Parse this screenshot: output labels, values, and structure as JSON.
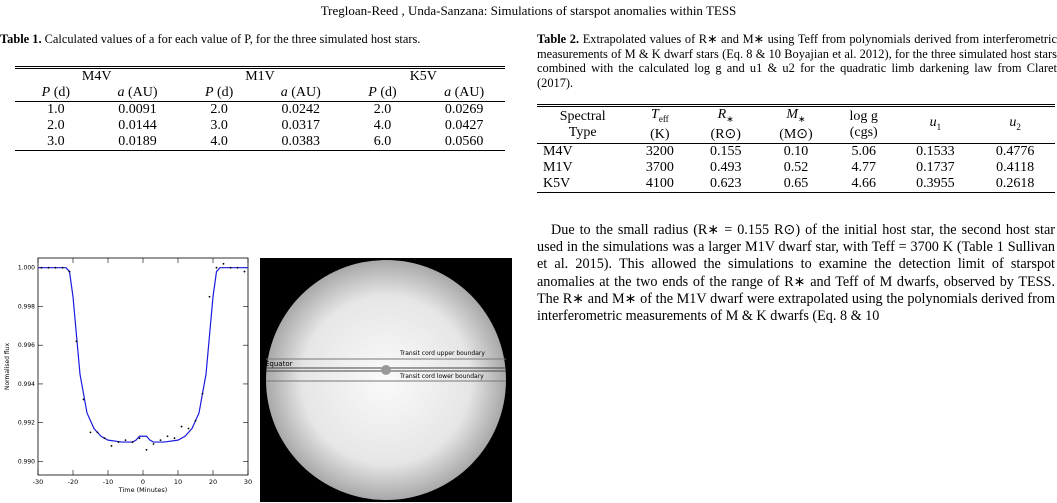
{
  "header": {
    "running_title": "Tregloan-Reed , Unda-Sanzana: Simulations of starspot anomalies within TESS"
  },
  "table1": {
    "label": "Table 1.",
    "caption": "Calculated values of a for each value of P, for the three simulated host stars.",
    "groups": [
      "M4V",
      "M1V",
      "K5V"
    ],
    "columns": [
      {
        "symbol": "P",
        "unit": "(d)"
      },
      {
        "symbol": "a",
        "unit": "(AU)"
      },
      {
        "symbol": "P",
        "unit": "(d)"
      },
      {
        "symbol": "a",
        "unit": "(AU)"
      },
      {
        "symbol": "P",
        "unit": "(d)"
      },
      {
        "symbol": "a",
        "unit": "(AU)"
      }
    ],
    "rows": [
      [
        "1.0",
        "0.0091",
        "2.0",
        "0.0242",
        "2.0",
        "0.0269"
      ],
      [
        "2.0",
        "0.0144",
        "3.0",
        "0.0317",
        "4.0",
        "0.0427"
      ],
      [
        "3.0",
        "0.0189",
        "4.0",
        "0.0383",
        "6.0",
        "0.0560"
      ]
    ]
  },
  "table2": {
    "label": "Table 2.",
    "caption": "Extrapolated values of R∗ and M∗ using Teff from polynomials derived from interferometric measurements of M & K dwarf stars (Eq. 8 & 10 Boyajian et al. 2012), for the three simulated host stars combined with the calculated log g and u1 & u2 for the quadratic limb darkening law from Claret (2017).",
    "columns": [
      {
        "symbol": "Spectral",
        "sub": "",
        "unit": "Type"
      },
      {
        "symbol": "T",
        "sub": "eff",
        "unit": "(K)"
      },
      {
        "symbol": "R",
        "sub": "∗",
        "unit": "(R⊙)"
      },
      {
        "symbol": "M",
        "sub": "∗",
        "unit": "(M⊙)"
      },
      {
        "symbol": "log g",
        "sub": "",
        "unit": "(cgs)"
      },
      {
        "symbol": "u",
        "sub": "1",
        "unit": ""
      },
      {
        "symbol": "u",
        "sub": "2",
        "unit": ""
      }
    ],
    "rows": [
      [
        "M4V",
        "3200",
        "0.155",
        "0.10",
        "5.06",
        "0.1533",
        "0.4776"
      ],
      [
        "M1V",
        "3700",
        "0.493",
        "0.52",
        "4.77",
        "0.1737",
        "0.4118"
      ],
      [
        "K5V",
        "4100",
        "0.623",
        "0.65",
        "4.66",
        "0.3955",
        "0.2618"
      ]
    ]
  },
  "paragraph": "Due to the small radius (R∗ = 0.155 R⊙) of the initial host star, the second host star used in the simulations was a larger M1V dwarf star, with Teff = 3700 K (Table 1 Sullivan et al. 2015). This allowed the simulations to examine the detection limit of starspot anomalies at the two ends of the range of R∗ and Teff of M dwarfs, observed by TESS. The R∗ and M∗ of the M1V dwarf were extrapolated using the polynomials derived from interferometric measurements of M & K dwarfs (Eq. 8 & 10",
  "chart_data": {
    "type": "line",
    "xlabel": "Time (Minutes)",
    "ylabel": "Normalised flux",
    "xlim": [
      -30,
      30
    ],
    "ylim": [
      0.9893,
      1.0005
    ],
    "xticks": [
      -30,
      -20,
      -10,
      0,
      10,
      20,
      30
    ],
    "yticks": [
      {
        "value": 0.99,
        "label": "0.990"
      },
      {
        "value": 0.992,
        "label": "0.992"
      },
      {
        "value": 0.994,
        "label": "0.994"
      },
      {
        "value": 0.996,
        "label": "0.996"
      },
      {
        "value": 0.998,
        "label": "0.998"
      },
      {
        "value": 1.0,
        "label": "1.000"
      }
    ],
    "model": {
      "color": "#1a1adc",
      "x": [
        -30,
        -22,
        -21,
        -20,
        -19,
        -18,
        -16,
        -14,
        -12,
        -10,
        -6,
        -3,
        -2,
        -1,
        0,
        1,
        2,
        3,
        6,
        10,
        12,
        14,
        16,
        18,
        19,
        20,
        21,
        22,
        30
      ],
      "y": [
        1.0,
        1.0,
        0.9998,
        0.9985,
        0.9965,
        0.9945,
        0.9925,
        0.9917,
        0.9913,
        0.9911,
        0.991,
        0.991,
        0.9911,
        0.9913,
        0.9913,
        0.9913,
        0.9911,
        0.991,
        0.991,
        0.9911,
        0.9913,
        0.9917,
        0.9925,
        0.9945,
        0.9965,
        0.9985,
        0.9998,
        1.0,
        1.0
      ]
    },
    "points": {
      "color": "#000000",
      "x": [
        -29,
        -27,
        -25,
        -23,
        -21,
        -19,
        -17,
        -15,
        -13,
        -11,
        -9,
        -7,
        -5,
        -3,
        -1,
        1,
        3,
        5,
        7,
        9,
        11,
        13,
        15,
        17,
        19,
        21,
        23,
        25,
        27,
        29
      ],
      "y": [
        1.0,
        1.0,
        1.0,
        1.0,
        0.9998,
        0.9962,
        0.9932,
        0.9915,
        0.9915,
        0.9912,
        0.9908,
        0.991,
        0.9911,
        0.991,
        0.9912,
        0.9906,
        0.9909,
        0.9911,
        0.9913,
        0.9912,
        0.9918,
        0.9917,
        0.9921,
        0.9935,
        0.9985,
        1.0,
        1.0002,
        1.0,
        1.0,
        0.9998
      ]
    }
  },
  "star_image": {
    "upper_label": "Transit cord upper boundary",
    "equator_label": "Equator",
    "lower_label": "Transit cord lower boundary"
  }
}
